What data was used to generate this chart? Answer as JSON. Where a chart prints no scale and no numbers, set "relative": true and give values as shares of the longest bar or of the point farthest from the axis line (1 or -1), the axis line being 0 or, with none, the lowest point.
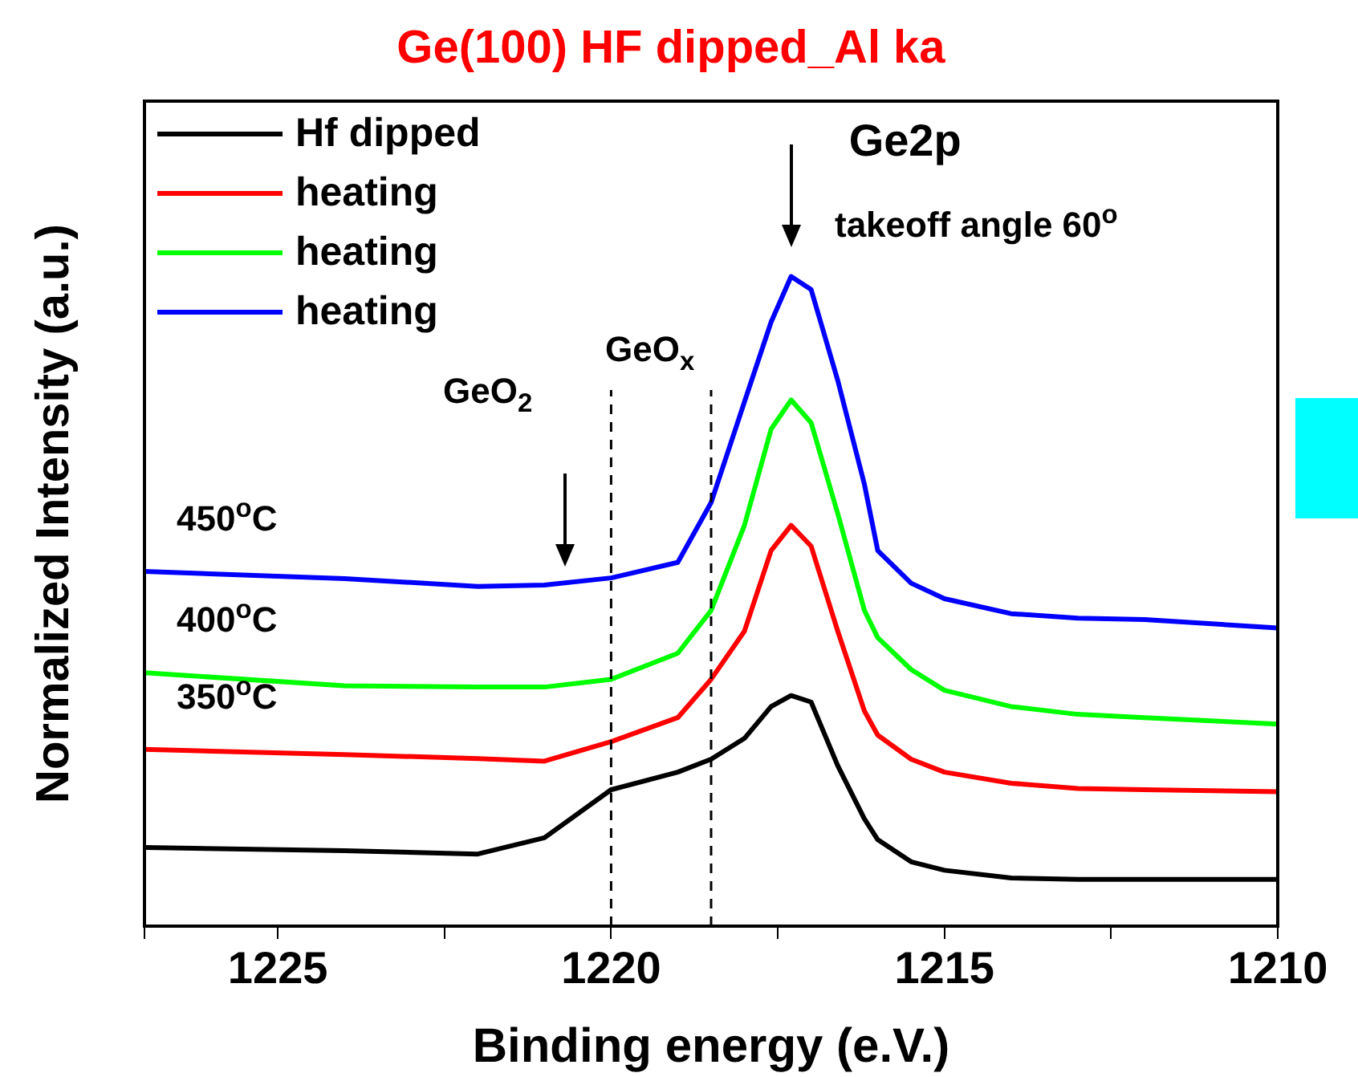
{
  "chart_data": {
    "type": "line",
    "title": "Ge(100) HF dipped_Al ka",
    "xlabel": "Binding energy (e.V.)",
    "ylabel": "Normalized Intensity (a.u.)",
    "relative": true,
    "legend": "top left",
    "grid": false,
    "marker": "none",
    "line_style": "solid",
    "x": [
      1227,
      1224,
      1222,
      1221,
      1220,
      1219,
      1218.5,
      1218,
      1217.6,
      1217.3,
      1217,
      1216.6,
      1216.2,
      1216,
      1215.5,
      1215,
      1214,
      1213,
      1212,
      1210
    ],
    "xlim": [
      1227,
      1210
    ],
    "xticks": [
      {
        "value": 1227,
        "label": null
      },
      {
        "value": 1225,
        "label": "1225"
      },
      {
        "value": 1222.5,
        "label": null
      },
      {
        "value": 1220,
        "label": "1220"
      },
      {
        "value": 1217.5,
        "label": null
      },
      {
        "value": 1215,
        "label": "1215"
      },
      {
        "value": 1212.5,
        "label": null
      },
      {
        "value": 1210,
        "label": "1210"
      }
    ],
    "series": [
      {
        "name": "Hf dipped",
        "color": "#000000",
        "values": [
          0.121,
          0.116,
          0.111,
          0.136,
          0.21,
          0.237,
          0.257,
          0.289,
          0.338,
          0.355,
          0.345,
          0.247,
          0.165,
          0.133,
          0.099,
          0.086,
          0.074,
          0.072,
          0.072,
          0.072
        ]
      },
      {
        "name": "heating",
        "color": "#ff0000",
        "values": [
          0.272,
          0.264,
          0.258,
          0.254,
          0.284,
          0.321,
          0.38,
          0.454,
          0.578,
          0.617,
          0.585,
          0.454,
          0.331,
          0.294,
          0.257,
          0.237,
          0.22,
          0.212,
          0.21,
          0.207
        ]
      },
      {
        "name": "heating",
        "color": "#00ff00",
        "values": [
          0.39,
          0.37,
          0.368,
          0.368,
          0.38,
          0.42,
          0.486,
          0.617,
          0.765,
          0.81,
          0.775,
          0.635,
          0.486,
          0.444,
          0.395,
          0.363,
          0.338,
          0.326,
          0.321,
          0.311
        ]
      },
      {
        "name": "heating",
        "color": "#0000ff",
        "values": [
          0.546,
          0.535,
          0.523,
          0.525,
          0.536,
          0.56,
          0.652,
          0.807,
          0.93,
          1.0,
          0.98,
          0.84,
          0.68,
          0.578,
          0.528,
          0.504,
          0.481,
          0.474,
          0.472,
          0.459
        ]
      }
    ],
    "ref_lines": [
      {
        "axis": "x",
        "value": 1220,
        "color": "#000000",
        "line_style": "dashed"
      },
      {
        "axis": "x",
        "value": 1218.5,
        "color": "#000000",
        "line_style": "dashed"
      }
    ],
    "annotations": [
      {
        "text": "Ge2p",
        "x": 1217.3,
        "y": 1.0
      },
      "takeoff angle 60$^{o}$",
      "GeO$_{2}$",
      {
        "text": "GeO$_{x}$",
        "x": 1218.5,
        "y": 0.82
      },
      {
        "text": "450$^{o}$C",
        "x": 1227,
        "y": 0.546
      },
      {
        "text": "400$^{o}$C",
        "x": 1227,
        "y": 0.39
      },
      {
        "text": "350$^{o}$C",
        "x": 1227,
        "y": 0.272
      }
    ]
  }
}
